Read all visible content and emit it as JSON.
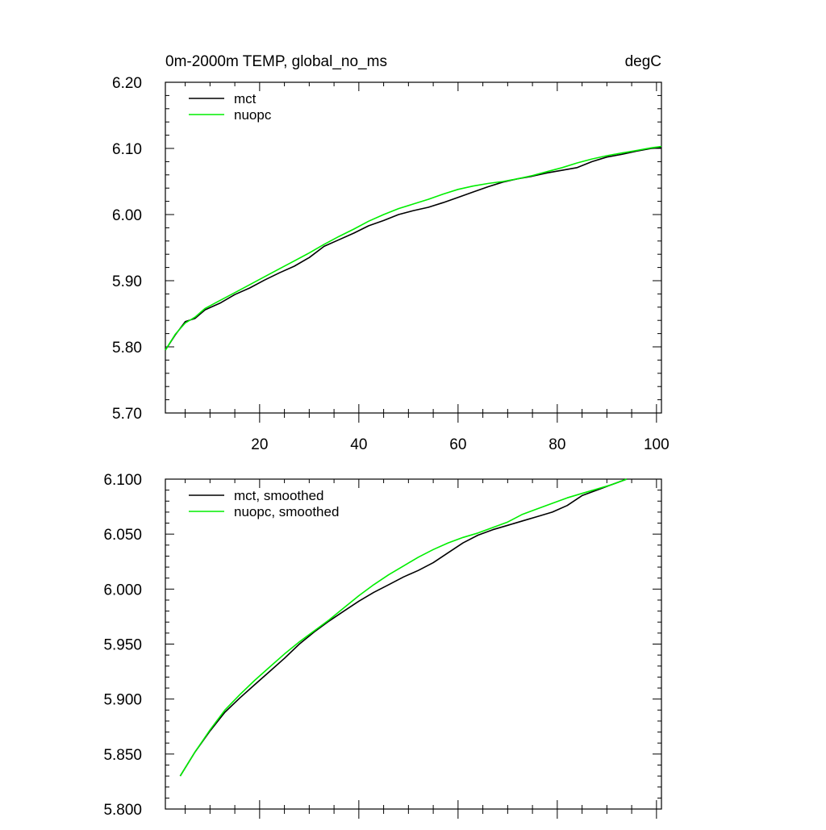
{
  "chart_data": [
    {
      "type": "line",
      "title": "0m-2000m TEMP, global_no_ms",
      "units": "degC",
      "xlabel": "",
      "ylabel": "",
      "xlim": [
        1,
        101
      ],
      "ylim": [
        5.7,
        6.2
      ],
      "x_ticks": [
        20,
        40,
        60,
        80,
        100
      ],
      "x_tick_labels": [
        "20",
        "40",
        "60",
        "80",
        "100"
      ],
      "y_ticks": [
        5.7,
        5.8,
        5.9,
        6.0,
        6.1,
        6.2
      ],
      "y_tick_labels": [
        "5.70",
        "5.80",
        "5.90",
        "6.00",
        "6.10",
        "6.20"
      ],
      "legend": "top-left",
      "series": [
        {
          "name": "mct",
          "color": "#000000",
          "points": [
            [
              1,
              5.795
            ],
            [
              3,
              5.818
            ],
            [
              5,
              5.838
            ],
            [
              7,
              5.843
            ],
            [
              9,
              5.856
            ],
            [
              12,
              5.866
            ],
            [
              15,
              5.879
            ],
            [
              18,
              5.889
            ],
            [
              21,
              5.901
            ],
            [
              24,
              5.912
            ],
            [
              27,
              5.922
            ],
            [
              30,
              5.935
            ],
            [
              33,
              5.952
            ],
            [
              36,
              5.962
            ],
            [
              39,
              5.972
            ],
            [
              42,
              5.983
            ],
            [
              45,
              5.991
            ],
            [
              48,
              6.0
            ],
            [
              51,
              6.006
            ],
            [
              54,
              6.011
            ],
            [
              57,
              6.018
            ],
            [
              60,
              6.026
            ],
            [
              63,
              6.034
            ],
            [
              66,
              6.042
            ],
            [
              69,
              6.049
            ],
            [
              72,
              6.054
            ],
            [
              75,
              6.058
            ],
            [
              78,
              6.063
            ],
            [
              81,
              6.067
            ],
            [
              84,
              6.071
            ],
            [
              87,
              6.08
            ],
            [
              90,
              6.087
            ],
            [
              93,
              6.091
            ],
            [
              96,
              6.096
            ],
            [
              99,
              6.1
            ],
            [
              101,
              6.101
            ]
          ]
        },
        {
          "name": "nuopc",
          "color": "#00ee00",
          "points": [
            [
              1,
              5.795
            ],
            [
              3,
              5.819
            ],
            [
              5,
              5.836
            ],
            [
              7,
              5.845
            ],
            [
              9,
              5.858
            ],
            [
              12,
              5.87
            ],
            [
              15,
              5.882
            ],
            [
              18,
              5.894
            ],
            [
              21,
              5.906
            ],
            [
              24,
              5.918
            ],
            [
              27,
              5.93
            ],
            [
              30,
              5.942
            ],
            [
              33,
              5.955
            ],
            [
              36,
              5.967
            ],
            [
              39,
              5.978
            ],
            [
              42,
              5.99
            ],
            [
              45,
              6.0
            ],
            [
              48,
              6.009
            ],
            [
              51,
              6.016
            ],
            [
              54,
              6.023
            ],
            [
              57,
              6.031
            ],
            [
              60,
              6.038
            ],
            [
              63,
              6.043
            ],
            [
              66,
              6.047
            ],
            [
              69,
              6.05
            ],
            [
              72,
              6.054
            ],
            [
              75,
              6.059
            ],
            [
              78,
              6.065
            ],
            [
              81,
              6.071
            ],
            [
              84,
              6.078
            ],
            [
              87,
              6.084
            ],
            [
              90,
              6.089
            ],
            [
              93,
              6.093
            ],
            [
              96,
              6.097
            ],
            [
              99,
              6.101
            ],
            [
              101,
              6.103
            ]
          ]
        }
      ]
    },
    {
      "type": "line",
      "title": "",
      "xlabel": "",
      "ylabel": "",
      "xlim": [
        1,
        101
      ],
      "ylim": [
        5.8,
        6.1
      ],
      "x_ticks": [
        20,
        40,
        60,
        80,
        100
      ],
      "y_ticks": [
        5.8,
        5.85,
        5.9,
        5.95,
        6.0,
        6.05,
        6.1
      ],
      "y_tick_labels": [
        "5.800",
        "5.850",
        "5.900",
        "5.950",
        "6.000",
        "6.050",
        "6.100"
      ],
      "legend": "top-left",
      "series": [
        {
          "name": "mct, smoothed",
          "color": "#000000",
          "points": [
            [
              4,
              5.83
            ],
            [
              7,
              5.852
            ],
            [
              10,
              5.871
            ],
            [
              13,
              5.888
            ],
            [
              16,
              5.901
            ],
            [
              19,
              5.913
            ],
            [
              22,
              5.925
            ],
            [
              25,
              5.937
            ],
            [
              28,
              5.95
            ],
            [
              31,
              5.961
            ],
            [
              34,
              5.971
            ],
            [
              37,
              5.98
            ],
            [
              40,
              5.989
            ],
            [
              43,
              5.997
            ],
            [
              46,
              6.004
            ],
            [
              49,
              6.011
            ],
            [
              52,
              6.017
            ],
            [
              55,
              6.024
            ],
            [
              58,
              6.033
            ],
            [
              61,
              6.042
            ],
            [
              64,
              6.049
            ],
            [
              67,
              6.054
            ],
            [
              70,
              6.058
            ],
            [
              73,
              6.062
            ],
            [
              76,
              6.066
            ],
            [
              79,
              6.07
            ],
            [
              82,
              6.076
            ],
            [
              85,
              6.085
            ],
            [
              88,
              6.09
            ],
            [
              91,
              6.095
            ],
            [
              94,
              6.1
            ]
          ]
        },
        {
          "name": "nuopc, smoothed",
          "color": "#00ee00",
          "points": [
            [
              4,
              5.83
            ],
            [
              7,
              5.852
            ],
            [
              10,
              5.872
            ],
            [
              13,
              5.89
            ],
            [
              16,
              5.904
            ],
            [
              19,
              5.917
            ],
            [
              22,
              5.929
            ],
            [
              25,
              5.941
            ],
            [
              28,
              5.952
            ],
            [
              31,
              5.962
            ],
            [
              34,
              5.972
            ],
            [
              37,
              5.983
            ],
            [
              40,
              5.994
            ],
            [
              43,
              6.004
            ],
            [
              46,
              6.013
            ],
            [
              49,
              6.021
            ],
            [
              52,
              6.029
            ],
            [
              55,
              6.036
            ],
            [
              58,
              6.042
            ],
            [
              61,
              6.047
            ],
            [
              64,
              6.051
            ],
            [
              67,
              6.056
            ],
            [
              70,
              6.061
            ],
            [
              73,
              6.068
            ],
            [
              76,
              6.073
            ],
            [
              79,
              6.078
            ],
            [
              82,
              6.083
            ],
            [
              85,
              6.087
            ],
            [
              88,
              6.091
            ],
            [
              91,
              6.095
            ],
            [
              94,
              6.1
            ]
          ]
        }
      ]
    }
  ]
}
